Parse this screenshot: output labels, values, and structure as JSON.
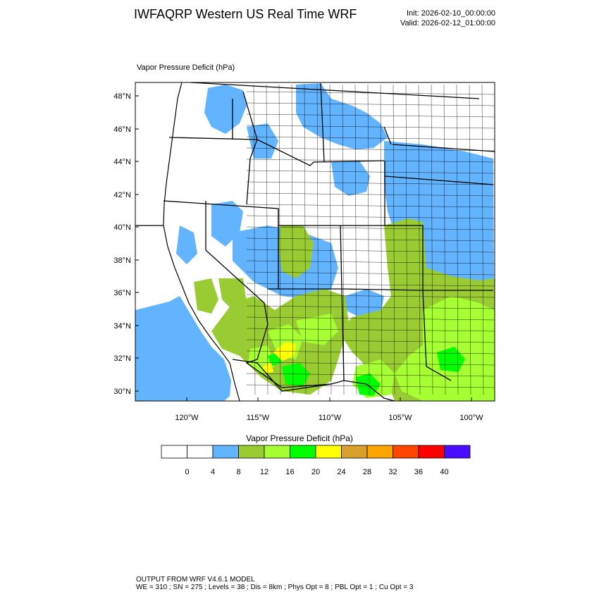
{
  "header": {
    "title": "IWFAQRP Western US Real Time WRF",
    "init": "Init: 2026-02-10_00:00:00",
    "valid": "Valid: 2026-02-12_01:00:00"
  },
  "map": {
    "field_label": "Vapor Pressure Deficit   (hPa)",
    "lat_ticks": [
      "30°N",
      "32°N",
      "34°N",
      "36°N",
      "38°N",
      "40°N",
      "42°N",
      "44°N",
      "46°N",
      "48°N"
    ],
    "lon_ticks": [
      "120°W",
      "115°W",
      "110°W",
      "105°W",
      "100°W"
    ],
    "colors": {
      "ocean_fill": "#63b4ff",
      "class_4_8": "#63b4ff",
      "class_8_12": "#99cc33",
      "class_12_16": "#a6ff33",
      "class_16_20": "#00ff00",
      "class_20_24": "#ffff00",
      "border": "#000000"
    }
  },
  "colorbar": {
    "title": "Vapor Pressure Deficit  (hPa)",
    "colors": [
      "#ffffff",
      "#ffffff",
      "#63b4ff",
      "#99cc33",
      "#a6ff33",
      "#00ff00",
      "#ffff00",
      "#d9a12b",
      "#ffa500",
      "#ff4500",
      "#ff0000",
      "#4b0dff"
    ],
    "labels": [
      "0",
      "4",
      "8",
      "12",
      "16",
      "20",
      "24",
      "28",
      "32",
      "36",
      "40"
    ]
  },
  "footer": {
    "line1": "OUTPUT FROM WRF V4.6.1 MODEL",
    "line2": "WE = 310 ; SN = 275 ; Levels = 38 ; Dis = 8km ; Phys Opt = 8 ; PBL Opt = 1 ; Cu Opt = 3"
  }
}
